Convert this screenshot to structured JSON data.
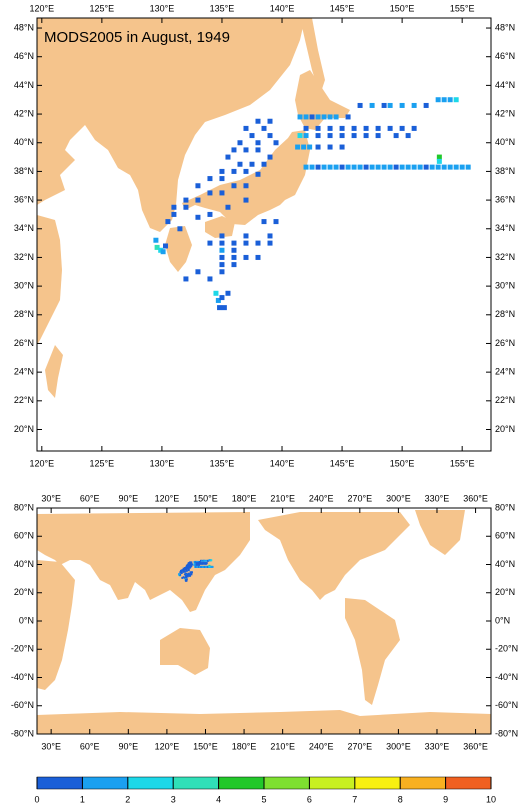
{
  "title": "MODS2005 in August, 1949",
  "top_map": {
    "xlim": [
      119.6,
      157.4
    ],
    "ylim": [
      18.5,
      48.7
    ],
    "xticks": [
      {
        "value": 120,
        "label": "120°E"
      },
      {
        "value": 125,
        "label": "125°E"
      },
      {
        "value": 130,
        "label": "130°E"
      },
      {
        "value": 135,
        "label": "135°E"
      },
      {
        "value": 140,
        "label": "140°E"
      },
      {
        "value": 145,
        "label": "145°E"
      },
      {
        "value": 150,
        "label": "150°E"
      },
      {
        "value": 155,
        "label": "155°E"
      }
    ],
    "yticks": [
      {
        "value": 20,
        "label": "20°N"
      },
      {
        "value": 22,
        "label": "22°N"
      },
      {
        "value": 24,
        "label": "24°N"
      },
      {
        "value": 26,
        "label": "26°N"
      },
      {
        "value": 28,
        "label": "28°N"
      },
      {
        "value": 30,
        "label": "30°N"
      },
      {
        "value": 32,
        "label": "32°N"
      },
      {
        "value": 34,
        "label": "34°N"
      },
      {
        "value": 36,
        "label": "36°N"
      },
      {
        "value": 38,
        "label": "38°N"
      },
      {
        "value": 40,
        "label": "40°N"
      },
      {
        "value": 42,
        "label": "42°N"
      },
      {
        "value": 44,
        "label": "44°N"
      },
      {
        "value": 46,
        "label": "46°N"
      },
      {
        "value": 48,
        "label": "48°N"
      }
    ]
  },
  "bottom_map": {
    "xlim": [
      19,
      372
    ],
    "ylim": [
      -80,
      80
    ],
    "xticks": [
      {
        "value": 30,
        "label": "30°E"
      },
      {
        "value": 60,
        "label": "60°E"
      },
      {
        "value": 90,
        "label": "90°E"
      },
      {
        "value": 120,
        "label": "120°E"
      },
      {
        "value": 150,
        "label": "150°E"
      },
      {
        "value": 180,
        "label": "180°E"
      },
      {
        "value": 210,
        "label": "210°E"
      },
      {
        "value": 240,
        "label": "240°E"
      },
      {
        "value": 270,
        "label": "270°E"
      },
      {
        "value": 300,
        "label": "300°E"
      },
      {
        "value": 330,
        "label": "330°E"
      },
      {
        "value": 360,
        "label": "360°E"
      }
    ],
    "yticks": [
      {
        "value": -80,
        "label": "-80°N"
      },
      {
        "value": -60,
        "label": "-60°N"
      },
      {
        "value": -40,
        "label": "-40°N"
      },
      {
        "value": -20,
        "label": "-20°N"
      },
      {
        "value": 0,
        "label": "0°N"
      },
      {
        "value": 20,
        "label": "20°N"
      },
      {
        "value": 40,
        "label": "40°N"
      },
      {
        "value": 60,
        "label": "60°N"
      },
      {
        "value": 80,
        "label": "80°N"
      }
    ]
  },
  "colorbar": {
    "ticks": [
      0,
      1,
      2,
      3,
      4,
      5,
      6,
      7,
      8,
      9,
      10
    ],
    "colors": [
      "#1a5fd8",
      "#1aa0f0",
      "#1cd8e8",
      "#30e0b8",
      "#22c82a",
      "#7ee030",
      "#c8f020",
      "#f8f010",
      "#f8b020",
      "#f06020"
    ]
  },
  "observations": {
    "lon": [
      141.5,
      142,
      142.5,
      143,
      143.5,
      144,
      144.5,
      145.5,
      146.5,
      147.5,
      148.5,
      149,
      150,
      151,
      152,
      153,
      153.5,
      154,
      154.5,
      142,
      143,
      144,
      145,
      146,
      147,
      148,
      149,
      150,
      151,
      141.5,
      142,
      143,
      144,
      145,
      146,
      147,
      148,
      149.5,
      150.5,
      141.3,
      141.8,
      142.3,
      143,
      144,
      145,
      142,
      142.5,
      143,
      143.5,
      144,
      144.5,
      145,
      145.5,
      146,
      146.5,
      147,
      147.5,
      148,
      148.5,
      149,
      149.5,
      150,
      150.5,
      151,
      151.5,
      152,
      152.5,
      153,
      153.5,
      154,
      154.5,
      155,
      155.5,
      153.1,
      153.1,
      138,
      139,
      137,
      138.5,
      137.5,
      139,
      136.5,
      138,
      139.5,
      136,
      137,
      138,
      139,
      135.5,
      136.5,
      137.5,
      138.5,
      135,
      136,
      137,
      138,
      134,
      135,
      136,
      137,
      133,
      134,
      135,
      132,
      133,
      131,
      132,
      131,
      130.5,
      131.5,
      133,
      134,
      135.5,
      137,
      135,
      135,
      135,
      135,
      135,
      135,
      136,
      136,
      136,
      136,
      137,
      137,
      137,
      138,
      138,
      139,
      139,
      138.5,
      139.5,
      134,
      133,
      132,
      134,
      134.5,
      134.7,
      135,
      135.5,
      134.8,
      135.2,
      129.6,
      129.9,
      130.1,
      130.3,
      129.5
    ],
    "lat": [
      41.8,
      41.8,
      41.8,
      41.8,
      41.8,
      41.8,
      41.8,
      41.8,
      42.6,
      42.6,
      42.6,
      42.6,
      42.6,
      42.6,
      42.6,
      43,
      43,
      43,
      43,
      41,
      41,
      41,
      41,
      41,
      41,
      41,
      41,
      41,
      41,
      40.5,
      40.5,
      40.5,
      40.5,
      40.5,
      40.5,
      40.5,
      40.5,
      40.5,
      40.5,
      39.7,
      39.7,
      39.7,
      39.7,
      39.7,
      39.7,
      38.3,
      38.3,
      38.3,
      38.3,
      38.3,
      38.3,
      38.3,
      38.3,
      38.3,
      38.3,
      38.3,
      38.3,
      38.3,
      38.3,
      38.3,
      38.3,
      38.3,
      38.3,
      38.3,
      38.3,
      38.3,
      38.3,
      38.3,
      38.3,
      38.3,
      38.3,
      38.3,
      38.3,
      39,
      38.7,
      41.5,
      41.5,
      41,
      41,
      40.5,
      40.5,
      40,
      40,
      40,
      39.5,
      39.5,
      39.5,
      39,
      39,
      38.5,
      38.5,
      38.5,
      38,
      38,
      38,
      37.8,
      37.5,
      37.5,
      37,
      37,
      37,
      36.5,
      36.5,
      36,
      36,
      35.5,
      35.5,
      35,
      34.5,
      34,
      34.8,
      35,
      35.5,
      36,
      33.5,
      33,
      32.5,
      32,
      31.5,
      31,
      33,
      32.5,
      32,
      31.5,
      33.5,
      33,
      32,
      33,
      32,
      33.5,
      33,
      34.5,
      34.5,
      33,
      31,
      30.5,
      30.5,
      29.5,
      29,
      29.2,
      29.5,
      28.5,
      28.5,
      32.7,
      32.5,
      32.4,
      32.8,
      33.2
    ],
    "value": [
      2,
      2,
      1,
      2,
      2,
      2,
      2,
      1,
      1,
      2,
      1,
      2,
      2,
      2,
      1,
      2,
      2,
      2,
      3,
      1,
      1,
      1,
      1,
      1,
      1,
      1,
      1,
      1,
      1,
      3,
      2,
      1,
      1,
      1,
      1,
      1,
      1,
      1,
      1,
      2,
      2,
      2,
      1,
      1,
      1,
      2,
      2,
      1,
      2,
      2,
      2,
      1,
      2,
      2,
      2,
      1,
      2,
      2,
      2,
      2,
      1,
      2,
      2,
      2,
      2,
      1,
      2,
      2,
      2,
      2,
      2,
      2,
      2,
      5,
      3,
      1,
      1,
      1,
      1,
      1,
      1,
      1,
      1,
      1,
      1,
      1,
      1,
      1,
      1,
      1,
      1,
      1,
      1,
      1,
      1,
      1,
      1,
      1,
      1,
      1,
      1,
      1,
      1,
      1,
      1,
      1,
      1,
      1,
      1,
      1,
      1,
      1,
      1,
      1,
      1,
      1,
      2,
      1,
      1,
      1,
      1,
      1,
      1,
      1,
      1,
      1,
      1,
      1,
      1,
      1,
      1,
      1,
      1,
      1,
      1,
      1,
      1,
      3,
      2,
      1,
      1,
      1,
      1,
      4,
      3,
      2,
      1,
      2
    ]
  }
}
